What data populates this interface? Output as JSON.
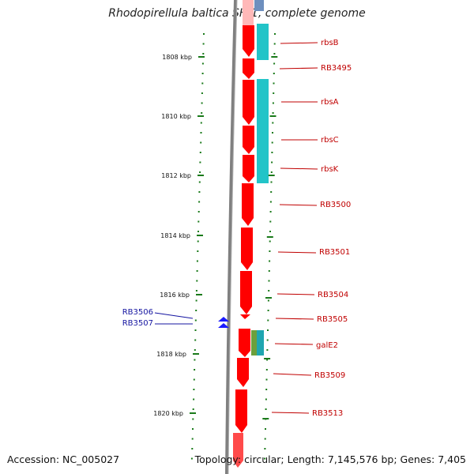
{
  "title": "Rhodopirellula baltica SH 1, complete genome",
  "footer": {
    "accession": "Accession: NC_005027",
    "summary": "Topology: circular; Length: 7,145,576 bp; Genes: 7,405"
  },
  "colors": {
    "gene_forward": "#ff0000",
    "gene_reverse_strand_marker": "#1a1aff",
    "feature_teal": "#22c4c8",
    "label_red": "#c00000",
    "label_blue": "#1414a0",
    "tick_green": "#1a7a1a",
    "backbone": "#808080"
  },
  "scale": {
    "unit": "kbp",
    "ticks": [
      {
        "label": "1808 kbp"
      },
      {
        "label": "1810 kbp"
      },
      {
        "label": "1812 kbp"
      },
      {
        "label": "1814 kbp"
      },
      {
        "label": "1816 kbp"
      },
      {
        "label": "1818 kbp"
      },
      {
        "label": "1820 kbp"
      }
    ]
  },
  "genes_right": [
    {
      "label": "rbsB"
    },
    {
      "label": "RB3495"
    },
    {
      "label": "rbsA"
    },
    {
      "label": "rbsC"
    },
    {
      "label": "rbsK"
    },
    {
      "label": "RB3500"
    },
    {
      "label": "RB3501"
    },
    {
      "label": "RB3504"
    },
    {
      "label": "RB3505"
    },
    {
      "label": "galE2"
    },
    {
      "label": "RB3509"
    },
    {
      "label": "RB3513"
    }
  ],
  "genes_left": [
    {
      "label": "RB3506"
    },
    {
      "label": "RB3507"
    }
  ]
}
